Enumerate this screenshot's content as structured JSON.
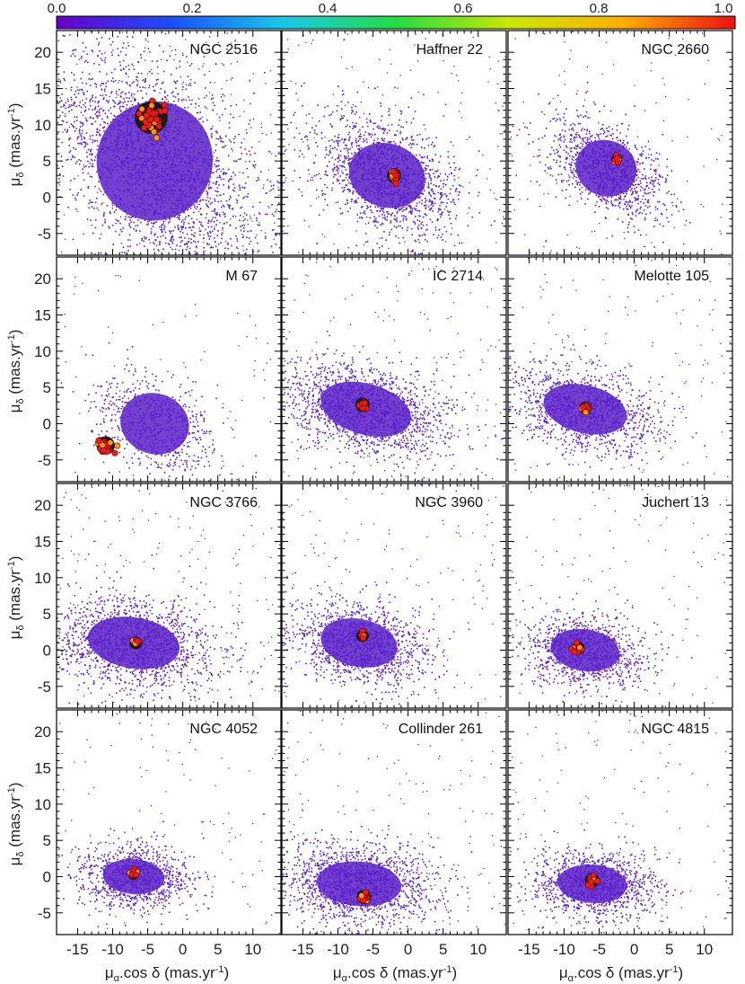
{
  "chart_data": {
    "type": "scatter",
    "panels": [
      {
        "title": "NGC 2516",
        "field": {
          "x": -4,
          "y": 5,
          "sx": 7.5,
          "sy": 7.5,
          "rho": 0.45,
          "n": 2600
        },
        "cluster": {
          "x": -4.5,
          "y": 11.0,
          "r": 1.8,
          "n": 45
        }
      },
      {
        "title": "Haffner 22",
        "field": {
          "x": -3,
          "y": 3,
          "sx": 5.0,
          "sy": 4.0,
          "rho": 0.4,
          "n": 1500
        },
        "cluster": {
          "x": -2.0,
          "y": 3.0,
          "r": 0.8,
          "n": 12
        }
      },
      {
        "title": "NGC 2660",
        "field": {
          "x": -4,
          "y": 4,
          "sx": 4.0,
          "sy": 3.5,
          "rho": 0.5,
          "n": 1100
        },
        "cluster": {
          "x": -2.5,
          "y": 5.3,
          "r": 0.6,
          "n": 8
        }
      },
      {
        "title": "M 67",
        "field": {
          "x": -4,
          "y": 0,
          "sx": 4.5,
          "sy": 3.8,
          "rho": 0.4,
          "n": 700
        },
        "cluster": {
          "x": -11.0,
          "y": -3.0,
          "r": 1.0,
          "n": 30
        }
      },
      {
        "title": "IC 2714",
        "field": {
          "x": -6,
          "y": 2,
          "sx": 6.0,
          "sy": 3.2,
          "rho": 0.35,
          "n": 1600
        },
        "cluster": {
          "x": -6.5,
          "y": 2.6,
          "r": 0.8,
          "n": 12
        }
      },
      {
        "title": "Melotte 105",
        "field": {
          "x": -7,
          "y": 2,
          "sx": 5.5,
          "sy": 3.0,
          "rho": 0.3,
          "n": 1200
        },
        "cluster": {
          "x": -7.0,
          "y": 2.2,
          "r": 0.7,
          "n": 10
        }
      },
      {
        "title": "NGC 3766",
        "field": {
          "x": -7,
          "y": 1,
          "sx": 6.0,
          "sy": 3.2,
          "rho": 0.2,
          "n": 1600
        },
        "cluster": {
          "x": -6.7,
          "y": 1.0,
          "r": 0.7,
          "n": 10
        }
      },
      {
        "title": "NGC 3960",
        "field": {
          "x": -7,
          "y": 1,
          "sx": 5.0,
          "sy": 3.0,
          "rho": 0.25,
          "n": 1300
        },
        "cluster": {
          "x": -6.5,
          "y": 2.0,
          "r": 0.7,
          "n": 10
        }
      },
      {
        "title": "Juchert 13",
        "field": {
          "x": -7,
          "y": 0,
          "sx": 4.5,
          "sy": 2.6,
          "rho": 0.2,
          "n": 1100
        },
        "cluster": {
          "x": -8.0,
          "y": 0.3,
          "r": 0.7,
          "n": 10
        }
      },
      {
        "title": "NGC 4052",
        "field": {
          "x": -7,
          "y": 0,
          "sx": 4.0,
          "sy": 2.2,
          "rho": 0.1,
          "n": 1000
        },
        "cluster": {
          "x": -7.0,
          "y": 0.3,
          "r": 0.6,
          "n": 8
        }
      },
      {
        "title": "Collinder 261",
        "field": {
          "x": -7,
          "y": -1,
          "sx": 5.5,
          "sy": 2.8,
          "rho": 0.1,
          "n": 1500
        },
        "cluster": {
          "x": -6.3,
          "y": -2.8,
          "r": 0.8,
          "n": 14
        }
      },
      {
        "title": "NGC 4815",
        "field": {
          "x": -6,
          "y": -1,
          "sx": 4.5,
          "sy": 2.4,
          "rho": 0.1,
          "n": 1200
        },
        "cluster": {
          "x": -6.0,
          "y": -0.5,
          "r": 0.8,
          "n": 12
        }
      }
    ],
    "xlabel_main": "μ",
    "xlabel_sub": "α",
    "xlabel_rest": ".cos δ (mas.yr",
    "xlabel_sup": "-1",
    "xlabel_end": ")",
    "ylabel_main": "μ",
    "ylabel_sub": "δ",
    "ylabel_rest": " (mas.yr",
    "ylabel_sup": "-1",
    "ylabel_end": ")",
    "xlim": [
      -18,
      14
    ],
    "ylim": [
      -8,
      23
    ],
    "xticks": [
      -15,
      -10,
      -5,
      0,
      5,
      10
    ],
    "yticks": [
      -5,
      0,
      5,
      10,
      15,
      20
    ],
    "colorbar": {
      "range": [
        0,
        1
      ],
      "ticks": [
        "0.0",
        "0.2",
        "0.4",
        "0.6",
        "0.8",
        "1.0"
      ],
      "colors": [
        "#6a00c8",
        "#1a4dff",
        "#18c8e8",
        "#22dd44",
        "#c8e800",
        "#ffb000",
        "#ee1010"
      ]
    },
    "field_color": "#5a20c8",
    "cluster_fill": "#e8201c",
    "cluster_edge": "#6a0000"
  }
}
